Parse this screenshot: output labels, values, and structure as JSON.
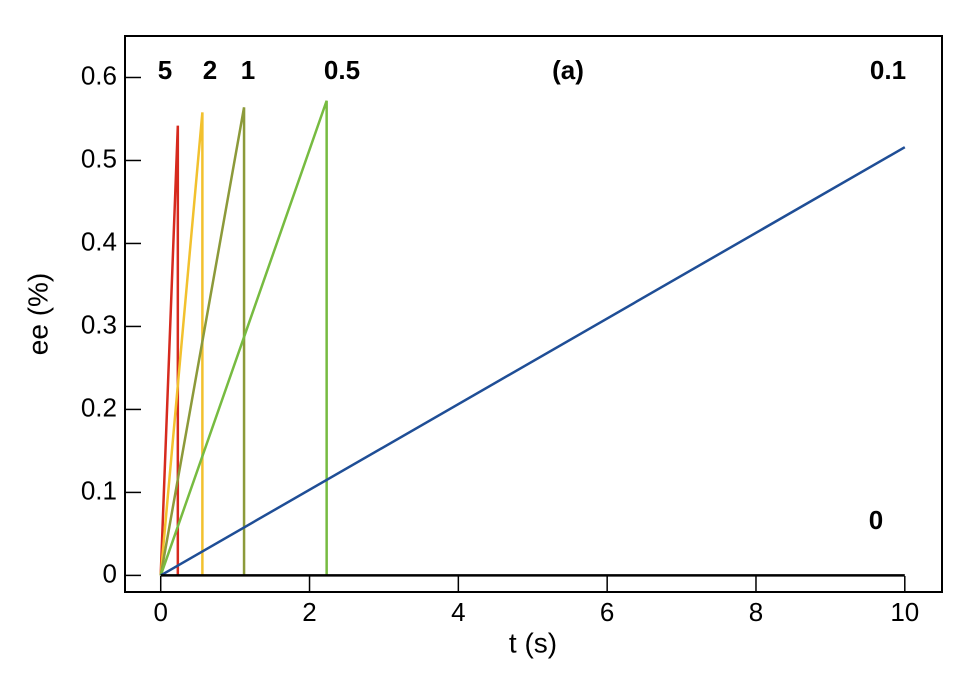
{
  "chart_data": {
    "type": "line",
    "title": "(a)",
    "x_label": "t (s)",
    "y_label": "ee (%)",
    "xlim": [
      -0.48,
      10.5
    ],
    "ylim": [
      -0.02,
      0.65
    ],
    "xticks": [
      0,
      2,
      4,
      6,
      8,
      10
    ],
    "yticks": [
      0,
      0.1,
      0.2,
      0.3,
      0.4,
      0.5,
      0.6
    ],
    "series": [
      {
        "name": "5",
        "color": "#d62a1e",
        "x": [
          0,
          0.23,
          0.23
        ],
        "values": [
          0,
          0.542,
          0
        ]
      },
      {
        "name": "2",
        "color": "#f2c12e",
        "x": [
          0,
          0.56,
          0.56
        ],
        "values": [
          0,
          0.558,
          0
        ]
      },
      {
        "name": "1",
        "color": "#8c9a3a",
        "x": [
          0,
          1.12,
          1.12
        ],
        "values": [
          0,
          0.564,
          0
        ]
      },
      {
        "name": "0.5",
        "color": "#77bb41",
        "x": [
          0,
          2.23,
          2.23
        ],
        "values": [
          0,
          0.572,
          0
        ]
      },
      {
        "name": "0.1",
        "color": "#1f4e96",
        "x": [
          0,
          10
        ],
        "values": [
          0,
          0.516
        ]
      },
      {
        "name": "0",
        "color": "#000000",
        "x": [
          0,
          10
        ],
        "values": [
          0,
          0
        ]
      }
    ]
  }
}
